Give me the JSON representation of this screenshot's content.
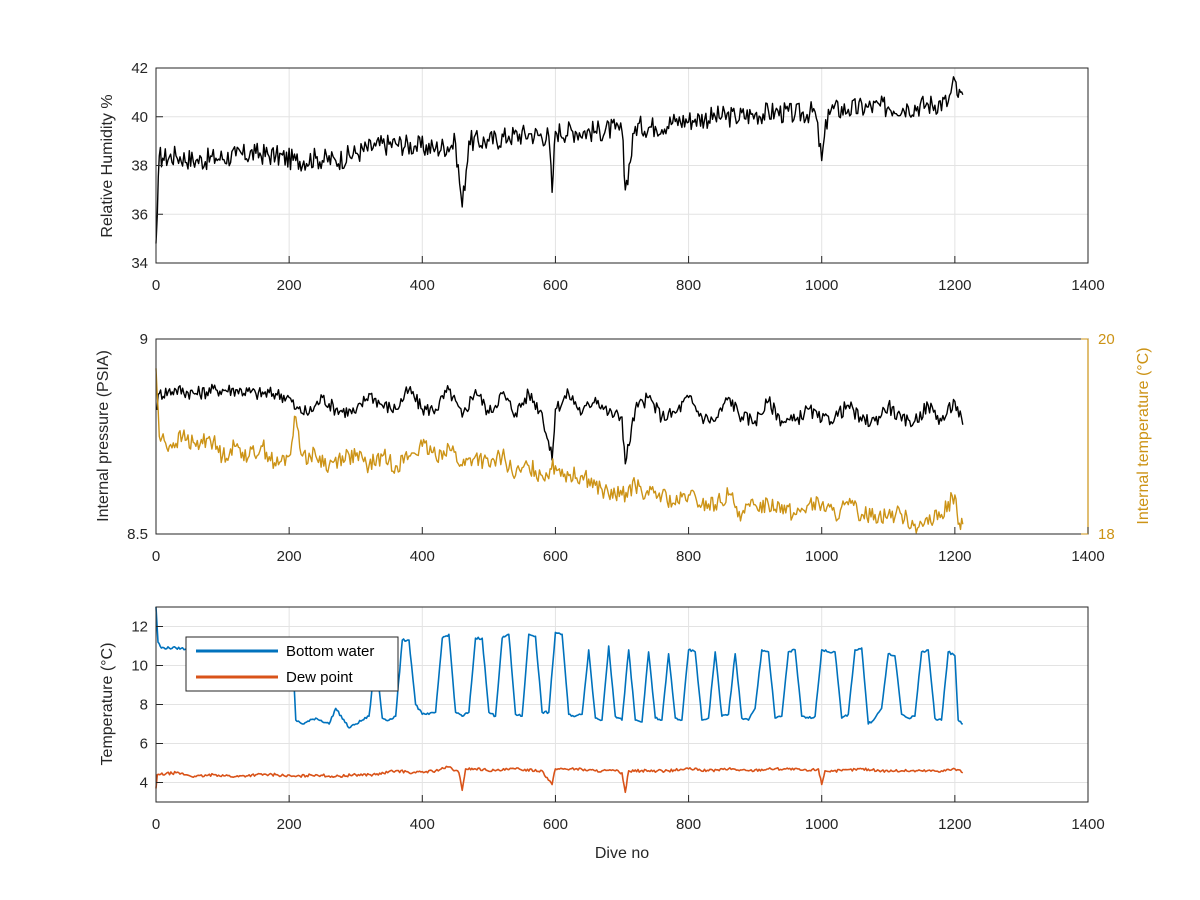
{
  "chart_data": [
    {
      "type": "line",
      "ylabel": "Relative Humidity %",
      "xlabel": "",
      "xlim": [
        0,
        1400
      ],
      "ylim": [
        34,
        42
      ],
      "xticks": [
        "0",
        "200",
        "400",
        "600",
        "800",
        "1000",
        "1200",
        "1400"
      ],
      "yticks": [
        "34",
        "36",
        "38",
        "40",
        "42"
      ],
      "grid": true,
      "series": [
        {
          "color": "#000000",
          "x": [
            0,
            2,
            5,
            10,
            30,
            60,
            90,
            120,
            150,
            180,
            210,
            240,
            270,
            300,
            330,
            360,
            390,
            420,
            450,
            460,
            470,
            500,
            530,
            560,
            590,
            595,
            600,
            630,
            660,
            690,
            700,
            705,
            720,
            750,
            780,
            810,
            840,
            870,
            900,
            930,
            960,
            990,
            1000,
            1010,
            1040,
            1070,
            1100,
            1130,
            1160,
            1190,
            1200,
            1205,
            1212
          ],
          "values": [
            34.8,
            36.0,
            38.4,
            38.3,
            38.4,
            38.2,
            38.3,
            38.4,
            38.5,
            38.4,
            38.2,
            38.3,
            38.2,
            38.5,
            38.8,
            38.9,
            38.8,
            38.7,
            38.9,
            36.3,
            39.0,
            39.0,
            39.2,
            39.3,
            39.2,
            36.9,
            39.4,
            39.4,
            39.4,
            39.5,
            39.4,
            37.0,
            39.6,
            39.6,
            39.8,
            39.9,
            40.0,
            40.0,
            40.1,
            40.2,
            40.1,
            40.2,
            38.2,
            40.3,
            40.3,
            40.4,
            40.4,
            40.4,
            40.5,
            40.6,
            41.5,
            40.8,
            40.9
          ]
        }
      ]
    },
    {
      "type": "line",
      "ylabel": "Internal pressure (PSIA)",
      "y2label": "Internal temperature (°C)",
      "xlabel": "",
      "xlim": [
        0,
        1400
      ],
      "ylim": [
        8.5,
        9
      ],
      "y2lim": [
        18,
        20
      ],
      "xticks": [
        "0",
        "200",
        "400",
        "600",
        "800",
        "1000",
        "1200",
        "1400"
      ],
      "yticks": [
        "8.5",
        "9"
      ],
      "y2ticks": [
        "18",
        "20"
      ],
      "grid": false,
      "y2color": "#cc9316",
      "series": [
        {
          "color": "#000000",
          "axis": "left",
          "x": [
            0,
            5,
            30,
            60,
            90,
            120,
            150,
            180,
            200,
            210,
            230,
            250,
            270,
            300,
            320,
            340,
            360,
            380,
            400,
            420,
            440,
            460,
            480,
            500,
            520,
            540,
            560,
            580,
            595,
            600,
            620,
            640,
            660,
            680,
            700,
            705,
            720,
            740,
            760,
            780,
            800,
            820,
            840,
            860,
            880,
            900,
            920,
            940,
            960,
            980,
            1000,
            1020,
            1040,
            1060,
            1080,
            1100,
            1120,
            1140,
            1160,
            1180,
            1200,
            1212
          ],
          "values": [
            8.82,
            8.86,
            8.87,
            8.86,
            8.87,
            8.87,
            8.86,
            8.86,
            8.85,
            8.82,
            8.81,
            8.85,
            8.82,
            8.81,
            8.86,
            8.83,
            8.82,
            8.87,
            8.82,
            8.82,
            8.87,
            8.8,
            8.87,
            8.81,
            8.86,
            8.81,
            8.86,
            8.81,
            8.69,
            8.82,
            8.86,
            8.81,
            8.85,
            8.81,
            8.8,
            8.68,
            8.82,
            8.85,
            8.8,
            8.81,
            8.85,
            8.8,
            8.79,
            8.85,
            8.8,
            8.79,
            8.84,
            8.79,
            8.79,
            8.82,
            8.79,
            8.8,
            8.83,
            8.79,
            8.79,
            8.83,
            8.79,
            8.79,
            8.83,
            8.79,
            8.84,
            8.78
          ]
        },
        {
          "color": "#cc9316",
          "axis": "right",
          "x": [
            0,
            5,
            20,
            40,
            60,
            80,
            100,
            120,
            140,
            160,
            180,
            200,
            210,
            220,
            240,
            260,
            280,
            300,
            320,
            340,
            360,
            380,
            400,
            420,
            440,
            460,
            480,
            500,
            520,
            540,
            560,
            580,
            600,
            620,
            640,
            660,
            680,
            700,
            720,
            740,
            760,
            780,
            800,
            820,
            840,
            860,
            880,
            900,
            920,
            940,
            960,
            980,
            1000,
            1020,
            1040,
            1060,
            1080,
            1100,
            1120,
            1140,
            1160,
            1180,
            1200,
            1205,
            1212
          ],
          "values": [
            19.7,
            19.0,
            18.9,
            19.0,
            18.9,
            19.0,
            18.8,
            18.9,
            18.8,
            18.9,
            18.7,
            18.8,
            19.2,
            18.8,
            18.8,
            18.7,
            18.8,
            18.8,
            18.7,
            18.8,
            18.7,
            18.8,
            18.9,
            18.8,
            18.9,
            18.7,
            18.8,
            18.7,
            18.8,
            18.6,
            18.7,
            18.6,
            18.7,
            18.6,
            18.6,
            18.5,
            18.4,
            18.4,
            18.5,
            18.4,
            18.4,
            18.3,
            18.4,
            18.3,
            18.3,
            18.4,
            18.2,
            18.3,
            18.3,
            18.3,
            18.2,
            18.3,
            18.3,
            18.2,
            18.3,
            18.2,
            18.2,
            18.2,
            18.2,
            18.1,
            18.1,
            18.2,
            18.4,
            18.1,
            18.1
          ]
        }
      ]
    },
    {
      "type": "line",
      "ylabel": "Temperature (°C)",
      "xlabel": "Dive no",
      "xlim": [
        0,
        1400
      ],
      "ylim": [
        3,
        13
      ],
      "xticks": [
        "0",
        "200",
        "400",
        "600",
        "800",
        "1000",
        "1200",
        "1400"
      ],
      "yticks": [
        "4",
        "6",
        "8",
        "10",
        "12"
      ],
      "grid": true,
      "legend": "top-left",
      "series": [
        {
          "name": "Bottom water",
          "color": "#0072bd",
          "x": [
            0,
            3,
            8,
            30,
            60,
            90,
            120,
            150,
            180,
            205,
            210,
            220,
            240,
            260,
            270,
            290,
            300,
            320,
            330,
            340,
            350,
            360,
            370,
            380,
            390,
            400,
            410,
            420,
            430,
            440,
            450,
            460,
            470,
            480,
            490,
            500,
            510,
            520,
            530,
            540,
            550,
            560,
            570,
            580,
            590,
            600,
            610,
            620,
            630,
            640,
            650,
            660,
            670,
            680,
            690,
            700,
            710,
            720,
            730,
            740,
            750,
            760,
            770,
            780,
            790,
            800,
            810,
            820,
            830,
            840,
            850,
            860,
            870,
            880,
            890,
            900,
            910,
            920,
            930,
            940,
            950,
            960,
            970,
            980,
            990,
            1000,
            1010,
            1020,
            1030,
            1040,
            1050,
            1060,
            1070,
            1080,
            1090,
            1100,
            1110,
            1120,
            1130,
            1140,
            1150,
            1160,
            1170,
            1180,
            1190,
            1200,
            1205,
            1212
          ],
          "values": [
            13.0,
            11.2,
            10.9,
            10.9,
            10.8,
            10.7,
            10.7,
            10.7,
            10.7,
            10.6,
            7.2,
            7.0,
            7.3,
            7.0,
            7.8,
            6.8,
            7.0,
            7.4,
            10.4,
            7.3,
            7.2,
            7.4,
            11.3,
            11.3,
            8.0,
            7.5,
            7.5,
            7.6,
            11.4,
            11.6,
            7.6,
            7.4,
            7.6,
            11.4,
            11.4,
            7.6,
            7.4,
            11.4,
            11.6,
            7.5,
            7.4,
            11.6,
            11.5,
            7.6,
            7.6,
            11.7,
            11.6,
            7.5,
            7.4,
            7.5,
            10.8,
            7.3,
            7.2,
            11.0,
            7.4,
            7.2,
            10.8,
            7.2,
            7.1,
            10.7,
            7.3,
            7.2,
            10.6,
            7.3,
            7.2,
            10.8,
            10.7,
            7.2,
            7.3,
            10.7,
            7.4,
            7.5,
            10.6,
            7.3,
            7.2,
            7.8,
            10.8,
            10.7,
            7.3,
            7.4,
            10.7,
            10.8,
            7.4,
            7.3,
            7.4,
            10.8,
            10.7,
            10.7,
            7.3,
            7.5,
            10.8,
            10.9,
            7.0,
            7.3,
            7.8,
            10.6,
            10.5,
            7.5,
            7.3,
            7.4,
            10.7,
            10.8,
            7.3,
            7.2,
            10.7,
            10.5,
            7.2,
            7.0
          ]
        },
        {
          "name": "Dew point",
          "color": "#d95319",
          "x": [
            0,
            2,
            5,
            30,
            60,
            90,
            120,
            150,
            180,
            210,
            240,
            270,
            300,
            330,
            360,
            390,
            420,
            440,
            455,
            460,
            465,
            480,
            510,
            540,
            580,
            595,
            600,
            630,
            660,
            690,
            700,
            705,
            710,
            740,
            770,
            800,
            830,
            860,
            890,
            920,
            950,
            980,
            995,
            1000,
            1005,
            1030,
            1060,
            1090,
            1120,
            1150,
            1180,
            1200,
            1212
          ],
          "values": [
            3.7,
            4.4,
            4.4,
            4.5,
            4.3,
            4.4,
            4.3,
            4.4,
            4.4,
            4.3,
            4.4,
            4.3,
            4.4,
            4.4,
            4.6,
            4.5,
            4.6,
            4.8,
            4.5,
            3.6,
            4.7,
            4.7,
            4.6,
            4.7,
            4.6,
            3.9,
            4.7,
            4.7,
            4.6,
            4.6,
            4.5,
            3.5,
            4.6,
            4.6,
            4.6,
            4.7,
            4.6,
            4.7,
            4.6,
            4.7,
            4.7,
            4.6,
            4.7,
            3.9,
            4.6,
            4.6,
            4.7,
            4.6,
            4.6,
            4.6,
            4.6,
            4.7,
            4.5
          ]
        }
      ]
    }
  ]
}
